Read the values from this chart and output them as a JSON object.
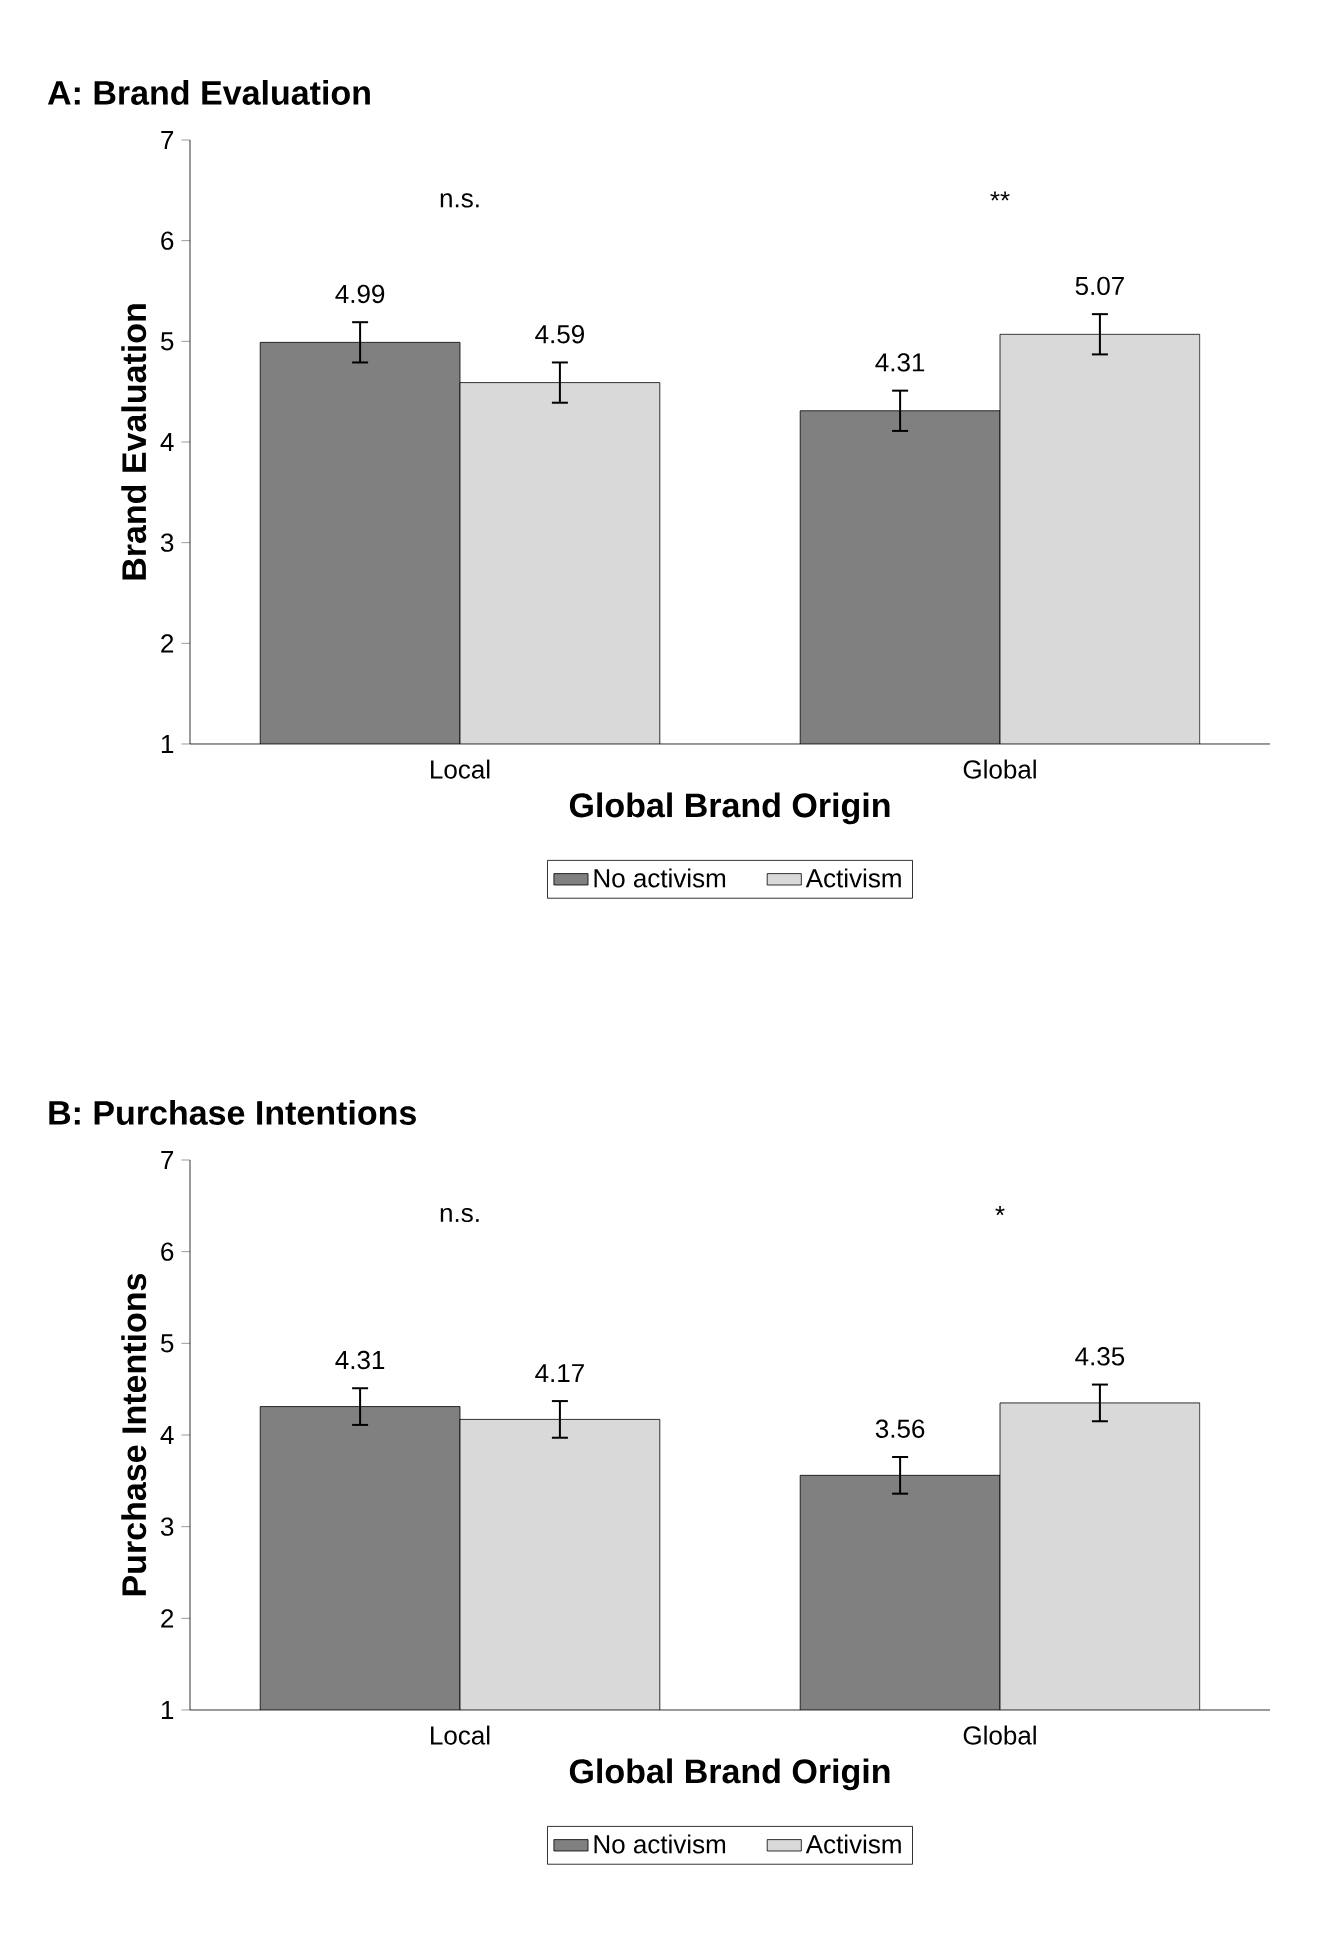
{
  "chart_data": [
    {
      "type": "bar",
      "title": "A: Brand Evaluation",
      "xlabel": "Global Brand Origin",
      "ylabel": "Brand Evaluation",
      "categories": [
        "Local",
        "Global"
      ],
      "series": [
        {
          "name": "No activism",
          "color": "#808080",
          "values": [
            4.99,
            4.31
          ],
          "errors": [
            0.2,
            0.2
          ]
        },
        {
          "name": "Activism",
          "color": "#d9d9d9",
          "values": [
            4.59,
            5.07
          ],
          "errors": [
            0.2,
            0.2
          ]
        }
      ],
      "ylim": [
        1,
        7
      ],
      "yticks": [
        1,
        2,
        3,
        4,
        5,
        6,
        7
      ],
      "data_labels": true,
      "legend": "bottom",
      "annotations": [
        "n.s.",
        "**"
      ]
    },
    {
      "type": "bar",
      "title": "B: Purchase Intentions",
      "xlabel": "Global Brand Origin",
      "ylabel": "Purchase Intentions",
      "categories": [
        "Local",
        "Global"
      ],
      "series": [
        {
          "name": "No activism",
          "color": "#808080",
          "values": [
            4.31,
            3.56
          ],
          "errors": [
            0.2,
            0.2
          ]
        },
        {
          "name": "Activism",
          "color": "#d9d9d9",
          "values": [
            4.17,
            4.35
          ],
          "errors": [
            0.2,
            0.2
          ]
        }
      ],
      "ylim": [
        1,
        7
      ],
      "yticks": [
        1,
        2,
        3,
        4,
        5,
        6,
        7
      ],
      "data_labels": true,
      "legend": "bottom",
      "annotations": [
        "n.s.",
        "*"
      ]
    }
  ]
}
